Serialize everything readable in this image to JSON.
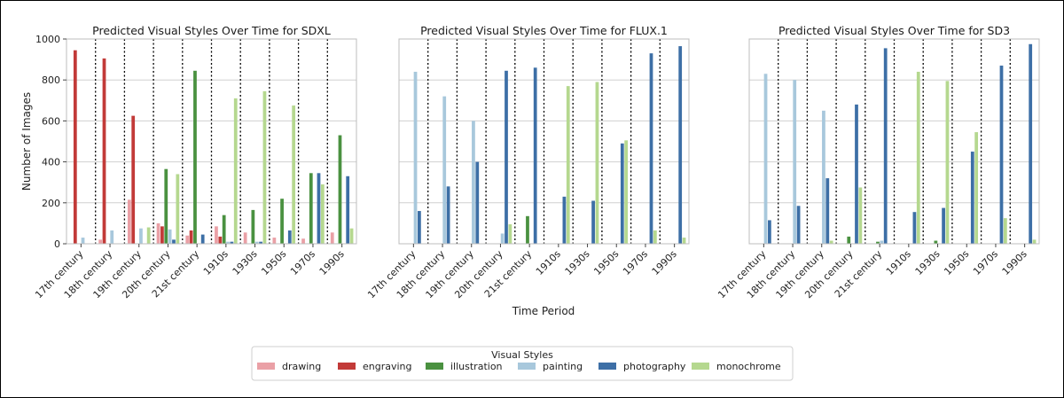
{
  "figure": {
    "xlabel": "Time Period",
    "ylabel": "Number of Images",
    "legend_title": "Visual Styles"
  },
  "colors": {
    "drawing": "#eaa0a6",
    "engraving": "#c23a38",
    "illustration": "#4a9140",
    "painting": "#a8c8dc",
    "photography": "#3d6fa6",
    "monochrome": "#b5d88f"
  },
  "chart_data": [
    {
      "type": "bar",
      "title": "Predicted Visual Styles Over Time for SDXL",
      "categories": [
        "17th century",
        "18th century",
        "19th century",
        "20th century",
        "21st century",
        "1910s",
        "1930s",
        "1950s",
        "1970s",
        "1990s"
      ],
      "ylim": [
        0,
        1000
      ],
      "yticks": [
        "0",
        "200",
        "400",
        "600",
        "800",
        "1000"
      ],
      "grid": true,
      "series": [
        {
          "name": "drawing",
          "values": [
            0,
            20,
            215,
            100,
            40,
            85,
            55,
            30,
            25,
            55
          ]
        },
        {
          "name": "engraving",
          "values": [
            945,
            905,
            625,
            85,
            65,
            35,
            0,
            0,
            0,
            0
          ]
        },
        {
          "name": "illustration",
          "values": [
            0,
            0,
            0,
            365,
            845,
            140,
            165,
            220,
            345,
            530
          ]
        },
        {
          "name": "painting",
          "values": [
            30,
            65,
            75,
            70,
            0,
            10,
            10,
            0,
            0,
            0
          ]
        },
        {
          "name": "photography",
          "values": [
            0,
            0,
            0,
            20,
            45,
            10,
            10,
            65,
            345,
            330
          ]
        },
        {
          "name": "monochrome",
          "values": [
            0,
            0,
            80,
            340,
            0,
            710,
            745,
            675,
            290,
            75
          ]
        }
      ]
    },
    {
      "type": "bar",
      "title": "Predicted Visual Styles Over Time for FLUX.1",
      "categories": [
        "17th century",
        "18th century",
        "19th century",
        "20th century",
        "21st century",
        "1910s",
        "1930s",
        "1950s",
        "1970s",
        "1990s"
      ],
      "ylim": [
        0,
        1000
      ],
      "grid": true,
      "series": [
        {
          "name": "drawing",
          "values": [
            0,
            0,
            0,
            0,
            0,
            0,
            0,
            0,
            0,
            0
          ]
        },
        {
          "name": "engraving",
          "values": [
            0,
            0,
            0,
            0,
            0,
            0,
            0,
            0,
            0,
            0
          ]
        },
        {
          "name": "illustration",
          "values": [
            0,
            0,
            0,
            0,
            135,
            0,
            0,
            0,
            0,
            0
          ]
        },
        {
          "name": "painting",
          "values": [
            840,
            720,
            600,
            50,
            0,
            0,
            0,
            0,
            0,
            0
          ]
        },
        {
          "name": "photography",
          "values": [
            160,
            280,
            400,
            845,
            860,
            230,
            210,
            490,
            930,
            965
          ]
        },
        {
          "name": "monochrome",
          "values": [
            0,
            0,
            0,
            95,
            0,
            770,
            790,
            505,
            65,
            30
          ]
        }
      ]
    },
    {
      "type": "bar",
      "title": "Predicted Visual Styles Over Time for SD3",
      "categories": [
        "17th century",
        "18th century",
        "19th century",
        "20th century",
        "21st century",
        "1910s",
        "1930s",
        "1950s",
        "1970s",
        "1990s"
      ],
      "ylim": [
        0,
        1000
      ],
      "grid": true,
      "series": [
        {
          "name": "drawing",
          "values": [
            0,
            0,
            0,
            0,
            0,
            0,
            0,
            0,
            0,
            0
          ]
        },
        {
          "name": "engraving",
          "values": [
            0,
            0,
            0,
            0,
            0,
            0,
            0,
            0,
            0,
            0
          ]
        },
        {
          "name": "illustration",
          "values": [
            0,
            0,
            0,
            35,
            10,
            0,
            15,
            0,
            0,
            0
          ]
        },
        {
          "name": "painting",
          "values": [
            830,
            800,
            650,
            0,
            15,
            0,
            0,
            0,
            0,
            0
          ]
        },
        {
          "name": "photography",
          "values": [
            115,
            185,
            320,
            680,
            955,
            155,
            175,
            450,
            870,
            975
          ]
        },
        {
          "name": "monochrome",
          "values": [
            0,
            0,
            15,
            275,
            0,
            840,
            795,
            545,
            125,
            20
          ]
        }
      ]
    }
  ],
  "legend": {
    "placement": "bottom-center",
    "items": [
      {
        "label": "drawing",
        "key": "drawing"
      },
      {
        "label": "engraving",
        "key": "engraving"
      },
      {
        "label": "illustration",
        "key": "illustration"
      },
      {
        "label": "painting",
        "key": "painting"
      },
      {
        "label": "photography",
        "key": "photography"
      },
      {
        "label": "monochrome",
        "key": "monochrome"
      }
    ]
  }
}
